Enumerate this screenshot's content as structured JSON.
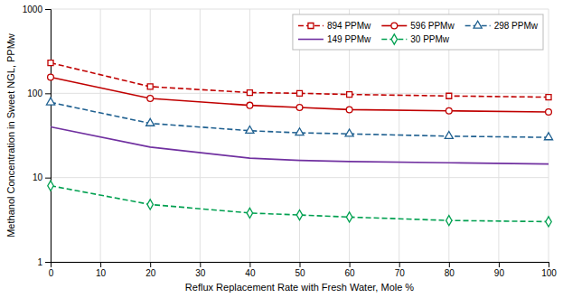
{
  "chart_data": {
    "type": "line",
    "x": [
      0,
      20,
      40,
      50,
      60,
      80,
      100
    ],
    "series": [
      {
        "name": "894 PPMw",
        "color": "#C00000",
        "line_style": "dashed",
        "marker": "square",
        "values": [
          230,
          120,
          102,
          100,
          97,
          93,
          90
        ]
      },
      {
        "name": "596 PPMw",
        "color": "#C00000",
        "line_style": "solid",
        "marker": "circle",
        "values": [
          155,
          87,
          72,
          68,
          64,
          62,
          60
        ]
      },
      {
        "name": "298 PPMw",
        "color": "#1F6090",
        "line_style": "dashed",
        "marker": "triangle",
        "values": [
          78,
          44,
          36,
          34,
          33,
          31,
          30
        ]
      },
      {
        "name": "149 PPMw",
        "color": "#7030A0",
        "line_style": "solid",
        "marker": "none",
        "values": [
          40,
          23,
          17,
          16,
          15.5,
          15,
          14.5
        ]
      },
      {
        "name": "30 PPMw",
        "color": "#00A050",
        "line_style": "dashed",
        "marker": "diamond",
        "values": [
          8.0,
          4.8,
          3.8,
          3.6,
          3.4,
          3.1,
          3.0
        ]
      }
    ],
    "xlabel": "Reflux Replacement Rate with Fresh Water,  Mole %",
    "ylabel": "Methanol Concentration in Sweet NGL, PPMw",
    "xlim": [
      0,
      100
    ],
    "ylim": [
      1,
      1000
    ],
    "xticks": [
      0,
      10,
      20,
      30,
      40,
      50,
      60,
      70,
      80,
      90,
      100
    ],
    "yticks": [
      1,
      10,
      100,
      1000
    ],
    "log": "y",
    "grid": true,
    "legend": "upper right"
  }
}
